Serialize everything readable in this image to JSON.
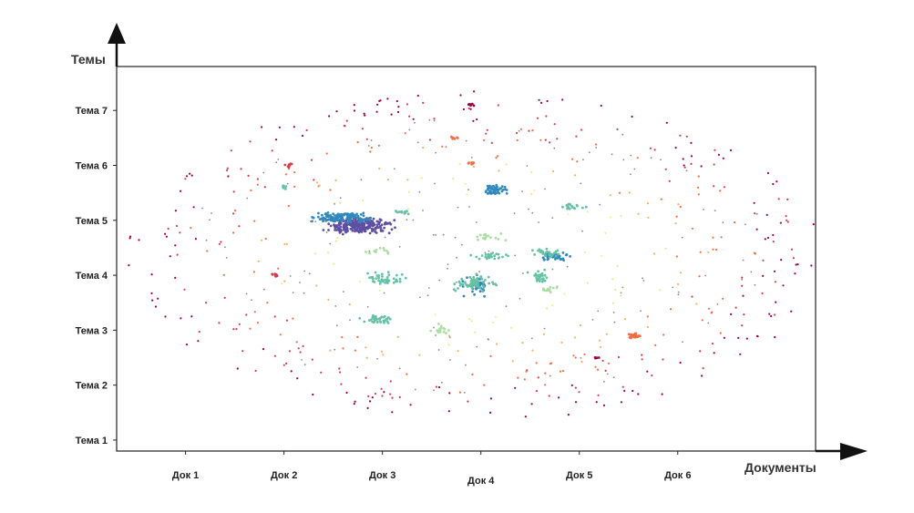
{
  "chart_data": {
    "type": "scatter",
    "title": "",
    "xlabel": "Документы",
    "ylabel": "Темы",
    "x_ticks": [
      "Док 1",
      "Док 2",
      "Док 3",
      "Док 4",
      "Док 5",
      "Док 6"
    ],
    "y_ticks": [
      "Тема 1",
      "Тема 2",
      "Тема 3",
      "Тема 4",
      "Тема 5",
      "Тема 6",
      "Тема 7"
    ],
    "xlim": [
      0.3,
      7.4
    ],
    "ylim": [
      0.8,
      7.8
    ],
    "grid": false,
    "legend": "none",
    "palette": [
      "#5e4fa2",
      "#3288bd",
      "#66c2a5",
      "#abdda4",
      "#e6f598",
      "#fee08b",
      "#fdae61",
      "#f46d43",
      "#d53e4f",
      "#9e0142",
      "#888888"
    ],
    "clusters": [
      {
        "x": 2.75,
        "y": 4.9,
        "color": "#5e4fa2",
        "count": 260,
        "spread": [
          0.3,
          0.13
        ]
      },
      {
        "x": 2.6,
        "y": 5.05,
        "color": "#3288bd",
        "count": 120,
        "spread": [
          0.25,
          0.1
        ]
      },
      {
        "x": 4.15,
        "y": 5.55,
        "color": "#3288bd",
        "count": 55,
        "spread": [
          0.12,
          0.09
        ]
      },
      {
        "x": 4.75,
        "y": 4.35,
        "color": "#3288bd",
        "count": 55,
        "spread": [
          0.12,
          0.07
        ]
      },
      {
        "x": 3.95,
        "y": 3.8,
        "color": "#3288bd",
        "count": 40,
        "spread": [
          0.14,
          0.14
        ]
      },
      {
        "x": 3.95,
        "y": 3.85,
        "color": "#66c2a5",
        "count": 70,
        "spread": [
          0.2,
          0.14
        ]
      },
      {
        "x": 3.05,
        "y": 3.95,
        "color": "#66c2a5",
        "count": 45,
        "spread": [
          0.18,
          0.1
        ]
      },
      {
        "x": 2.95,
        "y": 3.2,
        "color": "#66c2a5",
        "count": 35,
        "spread": [
          0.15,
          0.07
        ]
      },
      {
        "x": 4.6,
        "y": 3.95,
        "color": "#66c2a5",
        "count": 30,
        "spread": [
          0.1,
          0.12
        ]
      },
      {
        "x": 4.65,
        "y": 4.4,
        "color": "#66c2a5",
        "count": 30,
        "spread": [
          0.14,
          0.08
        ]
      },
      {
        "x": 4.1,
        "y": 4.35,
        "color": "#66c2a5",
        "count": 25,
        "spread": [
          0.16,
          0.06
        ]
      },
      {
        "x": 4.9,
        "y": 5.25,
        "color": "#66c2a5",
        "count": 18,
        "spread": [
          0.12,
          0.05
        ]
      },
      {
        "x": 3.2,
        "y": 5.15,
        "color": "#66c2a5",
        "count": 15,
        "spread": [
          0.1,
          0.05
        ]
      },
      {
        "x": 2.0,
        "y": 5.6,
        "color": "#66c2a5",
        "count": 6,
        "spread": [
          0.05,
          0.04
        ]
      },
      {
        "x": 3.6,
        "y": 3.0,
        "color": "#abdda4",
        "count": 15,
        "spread": [
          0.08,
          0.08
        ]
      },
      {
        "x": 4.1,
        "y": 4.7,
        "color": "#abdda4",
        "count": 15,
        "spread": [
          0.15,
          0.07
        ]
      },
      {
        "x": 4.7,
        "y": 3.75,
        "color": "#abdda4",
        "count": 12,
        "spread": [
          0.1,
          0.06
        ]
      },
      {
        "x": 2.95,
        "y": 4.45,
        "color": "#abdda4",
        "count": 12,
        "spread": [
          0.14,
          0.05
        ]
      },
      {
        "x": 5.55,
        "y": 2.9,
        "color": "#f46d43",
        "count": 35,
        "spread": [
          0.06,
          0.05
        ]
      },
      {
        "x": 1.9,
        "y": 4.0,
        "color": "#d53e4f",
        "count": 10,
        "spread": [
          0.06,
          0.03
        ]
      },
      {
        "x": 2.05,
        "y": 6.0,
        "color": "#d53e4f",
        "count": 8,
        "spread": [
          0.05,
          0.05
        ]
      },
      {
        "x": 3.9,
        "y": 7.1,
        "color": "#9e0142",
        "count": 6,
        "spread": [
          0.05,
          0.02
        ]
      },
      {
        "x": 3.75,
        "y": 6.5,
        "color": "#f46d43",
        "count": 6,
        "spread": [
          0.05,
          0.02
        ]
      },
      {
        "x": 3.9,
        "y": 6.05,
        "color": "#f46d43",
        "count": 6,
        "spread": [
          0.05,
          0.03
        ]
      },
      {
        "x": 5.2,
        "y": 2.5,
        "color": "#9e0142",
        "count": 4,
        "spread": [
          0.04,
          0.02
        ]
      }
    ],
    "background_scatter": {
      "center": [
        3.95,
        4.35
      ],
      "radius": [
        3.55,
        3.0
      ],
      "count": 480,
      "rule": "inner points cool/green, outer points warm/red"
    },
    "grey_noise": {
      "count": 160
    }
  }
}
